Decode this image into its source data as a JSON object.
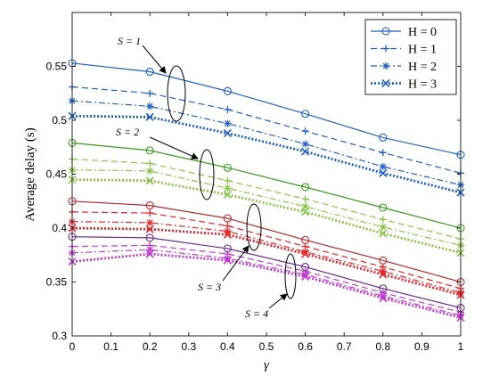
{
  "chart_data": {
    "type": "line",
    "xlabel": "γ",
    "ylabel": "Average delay  (s)",
    "xlim": [
      0,
      1
    ],
    "ylim": [
      0.3,
      0.6
    ],
    "xticks": [
      "0",
      "0.1",
      "0.2",
      "0.3",
      "0.4",
      "0.5",
      "0.6",
      "0.7",
      "0.8",
      "0.9",
      "1"
    ],
    "yticks": [
      "0.3",
      "0.35",
      "0.4",
      "0.45",
      "0.5",
      "0.55"
    ],
    "legend_position": "top-right",
    "legend": [
      {
        "label": "H = 0",
        "style": "solid",
        "marker": "circle"
      },
      {
        "label": "H = 1",
        "style": "dashed",
        "marker": "plus"
      },
      {
        "label": "H = 2",
        "style": "dashdot",
        "marker": "asterisk"
      },
      {
        "label": "H = 3",
        "style": "dotted",
        "marker": "x"
      }
    ],
    "x": [
      0,
      0.2,
      0.4,
      0.6,
      0.8,
      1.0
    ],
    "groups": [
      {
        "label": "S = 1",
        "color": "#1f5fc6",
        "light_color": "#1f5fc6",
        "series": [
          {
            "H": 0,
            "values": [
              0.553,
              0.545,
              0.527,
              0.506,
              0.484,
              0.468
            ]
          },
          {
            "H": 1,
            "values": [
              0.531,
              0.525,
              0.51,
              0.49,
              0.47,
              0.451
            ]
          },
          {
            "H": 2,
            "values": [
              0.518,
              0.513,
              0.497,
              0.478,
              0.457,
              0.44
            ]
          },
          {
            "H": 3,
            "values": [
              0.504,
              0.503,
              0.488,
              0.471,
              0.451,
              0.433
            ]
          }
        ]
      },
      {
        "label": "S = 2",
        "color": "#3a9a1c",
        "light_color": "#8bc34a",
        "series": [
          {
            "H": 0,
            "values": [
              0.479,
              0.472,
              0.456,
              0.438,
              0.419,
              0.4
            ]
          },
          {
            "H": 1,
            "values": [
              0.464,
              0.46,
              0.444,
              0.427,
              0.408,
              0.39
            ]
          },
          {
            "H": 2,
            "values": [
              0.454,
              0.453,
              0.437,
              0.42,
              0.401,
              0.384
            ]
          },
          {
            "H": 3,
            "values": [
              0.445,
              0.444,
              0.431,
              0.415,
              0.395,
              0.377
            ]
          }
        ]
      },
      {
        "label": "S = 3",
        "color": "#b52a2a",
        "light_color": "#e8262a",
        "series": [
          {
            "H": 0,
            "values": [
              0.425,
              0.421,
              0.409,
              0.389,
              0.37,
              0.35
            ]
          },
          {
            "H": 1,
            "values": [
              0.415,
              0.414,
              0.402,
              0.383,
              0.364,
              0.344
            ]
          },
          {
            "H": 2,
            "values": [
              0.406,
              0.405,
              0.397,
              0.378,
              0.36,
              0.34
            ]
          },
          {
            "H": 3,
            "values": [
              0.4,
              0.399,
              0.394,
              0.376,
              0.357,
              0.338
            ]
          }
        ]
      },
      {
        "label": "S = 4",
        "color": "#6a2a8a",
        "light_color": "#c03ad0",
        "series": [
          {
            "H": 0,
            "values": [
              0.392,
              0.391,
              0.381,
              0.364,
              0.344,
              0.326
            ]
          },
          {
            "H": 1,
            "values": [
              0.383,
              0.384,
              0.376,
              0.36,
              0.34,
              0.322
            ]
          },
          {
            "H": 2,
            "values": [
              0.377,
              0.38,
              0.372,
              0.357,
              0.337,
              0.319
            ]
          },
          {
            "H": 3,
            "values": [
              0.369,
              0.376,
              0.37,
              0.355,
              0.335,
              0.317
            ]
          }
        ]
      }
    ],
    "annotations": [
      "S = 1",
      "S = 2",
      "S = 3",
      "S = 4"
    ]
  }
}
